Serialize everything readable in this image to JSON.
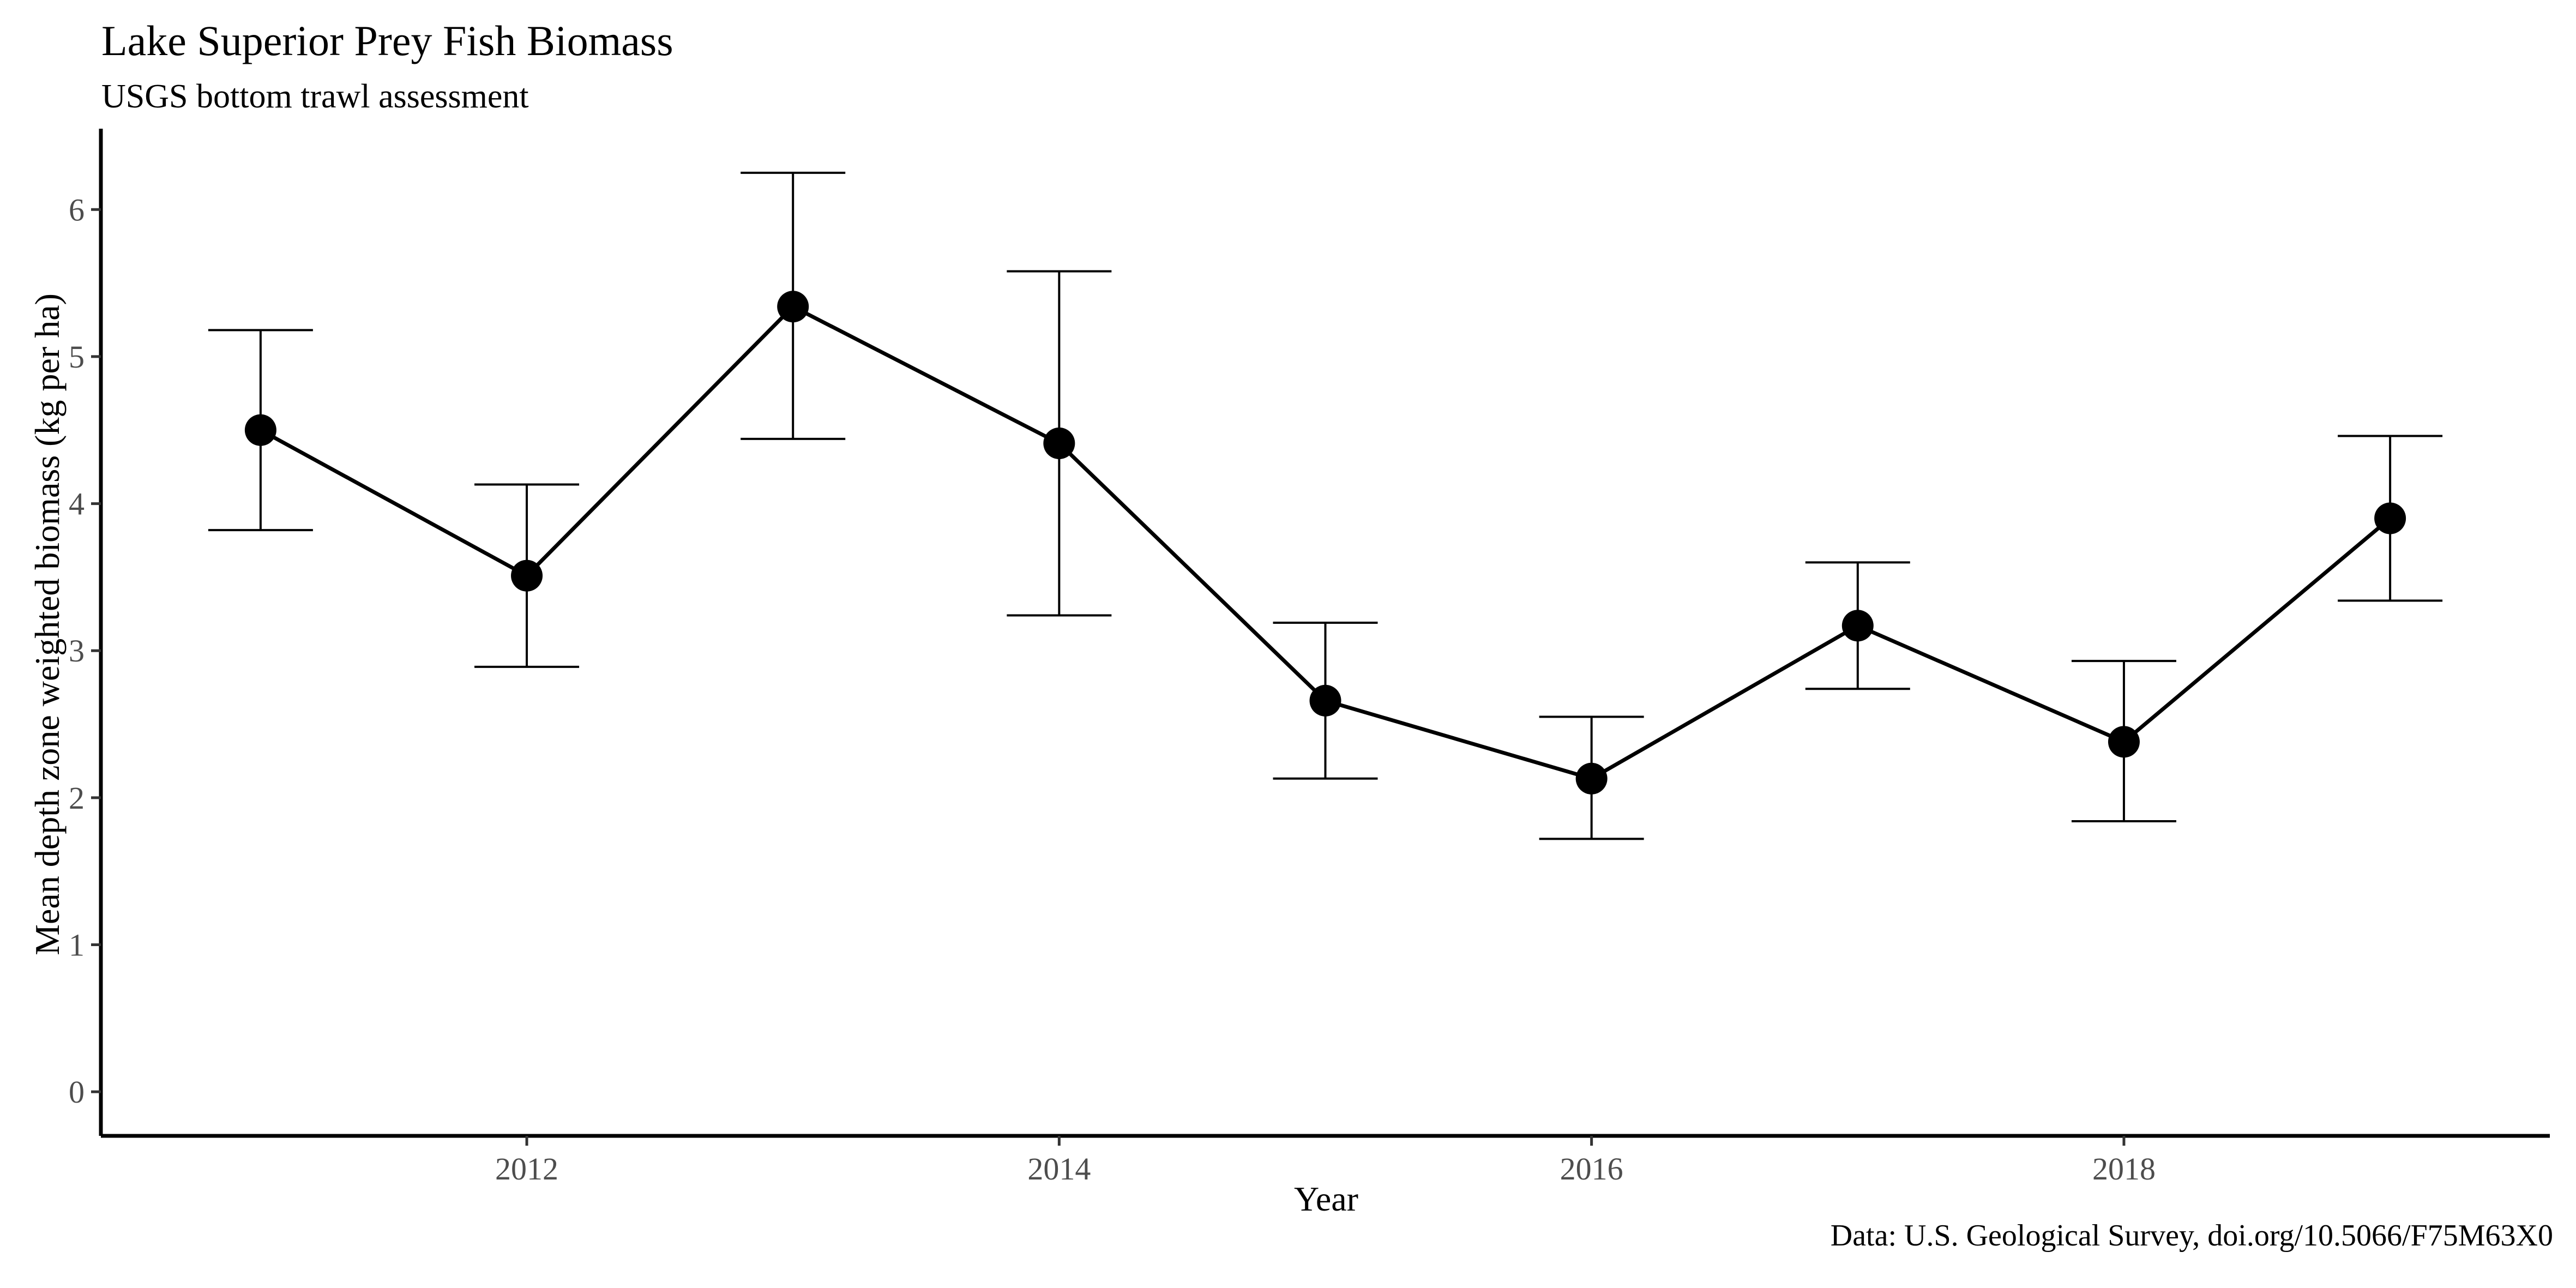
{
  "chart_data": {
    "type": "line",
    "title": "Lake Superior Prey Fish Biomass",
    "subtitle": "USGS bottom trawl assessment",
    "caption": "Data: U.S. Geological Survey, doi.org/10.5066/F75M63X0",
    "xlabel": "Year",
    "ylabel": "Mean depth zone weighted biomass (kg per ha)",
    "xlim": [
      2010.4,
      2019.6
    ],
    "ylim": [
      -0.3,
      6.55
    ],
    "x_ticks": [
      2012,
      2014,
      2016,
      2018
    ],
    "y_ticks": [
      0,
      1,
      2,
      3,
      4,
      5,
      6
    ],
    "grid": false,
    "series": [
      {
        "x": [
          2011,
          2012,
          2013,
          2014,
          2015,
          2016,
          2017,
          2018,
          2019
        ],
        "y": [
          4.5,
          3.51,
          5.34,
          4.41,
          2.66,
          2.13,
          3.17,
          2.38,
          3.9
        ],
        "lower": [
          3.82,
          2.89,
          4.44,
          3.24,
          2.13,
          1.72,
          2.74,
          1.84,
          3.34
        ],
        "upper": [
          5.18,
          4.13,
          6.25,
          5.58,
          3.19,
          2.55,
          3.6,
          2.93,
          4.46
        ]
      }
    ]
  }
}
